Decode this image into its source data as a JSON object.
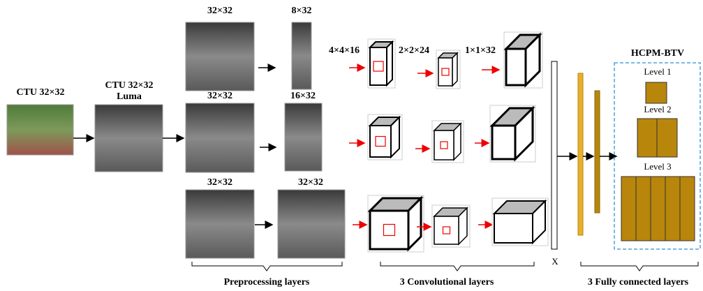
{
  "inputs": {
    "ctu": "CTU 32×32",
    "luma_title": "CTU 32×32",
    "luma_sub": "Luma"
  },
  "branches": [
    {
      "input_size": "32×32",
      "output_size": "8×32"
    },
    {
      "input_size": "32×32",
      "output_size": "16×32"
    },
    {
      "input_size": "32×32",
      "output_size": "32×32"
    }
  ],
  "conv_sizes": [
    "4×4×16",
    "2×2×24",
    "1×1×32"
  ],
  "concat_label": "X",
  "output": {
    "title": "HCPM-BTV",
    "levels": [
      "Level 1",
      "Level 2",
      "Level 3"
    ]
  },
  "sections": [
    "Preprocessing layers",
    "3 Convolutional layers",
    "3 Fully connected layers"
  ]
}
